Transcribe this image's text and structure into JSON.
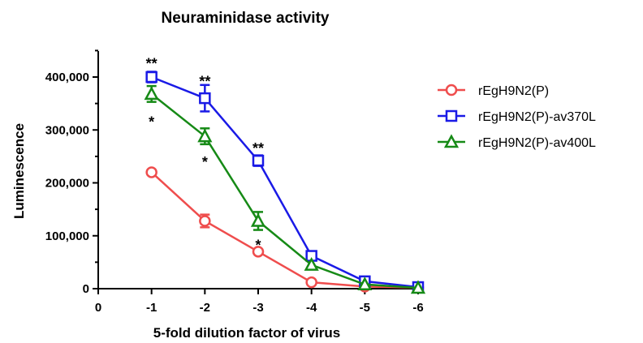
{
  "chart_data": {
    "type": "line",
    "title": "Neuraminidase activity",
    "xlabel": "5-fold dilution factor of virus",
    "ylabel": "Luminescence",
    "x_categories": [
      "0",
      "-1",
      "-2",
      "-3",
      "-4",
      "-5",
      "-6"
    ],
    "x": [
      -1,
      -2,
      -3,
      -4,
      -5,
      -6
    ],
    "ylim": [
      0,
      450000
    ],
    "y_ticks": [
      0,
      100000,
      200000,
      300000,
      400000
    ],
    "y_tick_labels": [
      "0",
      "100,000",
      "200,000",
      "300,000",
      "400,000"
    ],
    "legend_position": "right",
    "series": [
      {
        "name": "rEgH9N2(P)",
        "color": "#ef4d4d",
        "marker": "circle",
        "values": [
          220000,
          128000,
          70000,
          12000,
          4000,
          2000
        ],
        "errors": [
          0,
          12000,
          0,
          0,
          0,
          0
        ]
      },
      {
        "name": "rEgH9N2(P)-av370L",
        "color": "#1a1ae6",
        "marker": "square",
        "values": [
          400000,
          360000,
          242000,
          62000,
          14000,
          3000
        ],
        "errors": [
          10000,
          25000,
          10000,
          0,
          0,
          0
        ]
      },
      {
        "name": "rEgH9N2(P)-av400L",
        "color": "#168a16",
        "marker": "triangle",
        "values": [
          368000,
          288000,
          128000,
          45000,
          8000,
          1500
        ],
        "errors": [
          15000,
          15000,
          17000,
          0,
          0,
          0
        ]
      }
    ],
    "annotations": [
      {
        "text": "**",
        "x": -1,
        "y": 428000
      },
      {
        "text": "*",
        "x": -1,
        "y": 318000
      },
      {
        "text": "**",
        "x": -2,
        "y": 395000
      },
      {
        "text": "*",
        "x": -2,
        "y": 242000
      },
      {
        "text": "**",
        "x": -3,
        "y": 268000
      },
      {
        "text": "*",
        "x": -3,
        "y": 85000
      }
    ]
  }
}
